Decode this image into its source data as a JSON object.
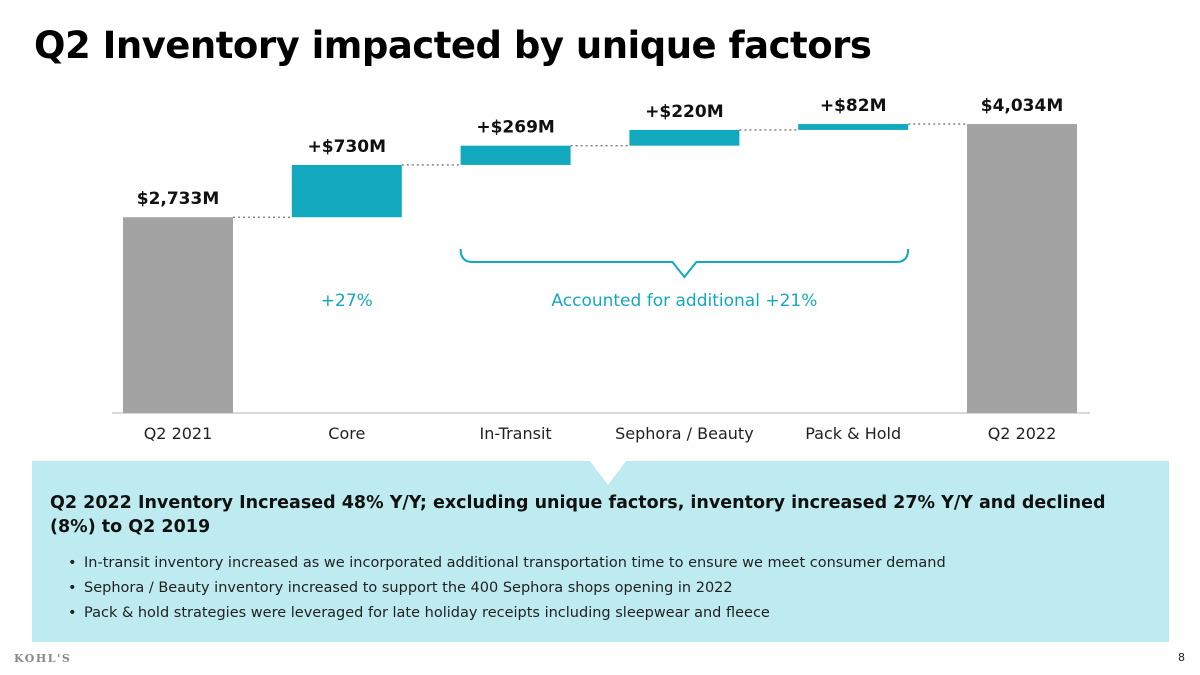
{
  "title": "Q2 Inventory impacted by unique factors",
  "colors": {
    "base": "#a3a3a3",
    "increase": "#12a9bf",
    "note": "#12a9bf",
    "axis": "#cccccc"
  },
  "chart_data": {
    "type": "waterfall",
    "unit": "$M",
    "categories": [
      "Q2 2021",
      "Core",
      "In-Transit",
      "Sephora / Beauty",
      "Pack & Hold",
      "Q2 2022"
    ],
    "series": [
      {
        "category": "Q2 2021",
        "kind": "total",
        "value": 2733,
        "label": "$2,733M"
      },
      {
        "category": "Core",
        "kind": "increase",
        "value": 730,
        "label": "+$730M"
      },
      {
        "category": "In-Transit",
        "kind": "increase",
        "value": 269,
        "label": "+$269M"
      },
      {
        "category": "Sephora / Beauty",
        "kind": "increase",
        "value": 220,
        "label": "+$220M"
      },
      {
        "category": "Pack & Hold",
        "kind": "increase",
        "value": 82,
        "label": "+$82M"
      },
      {
        "category": "Q2 2022",
        "kind": "total",
        "value": 4034,
        "label": "$4,034M"
      }
    ],
    "annotations": [
      {
        "id": "core",
        "text": "+27%",
        "category": "Core"
      },
      {
        "id": "unique",
        "text": "Accounted for additional +21%",
        "span": [
          "In-Transit",
          "Pack & Hold"
        ]
      }
    ],
    "ylim": [
      0,
      4034
    ]
  },
  "callout": {
    "headline": "Q2 2022 Inventory Increased 48% Y/Y; excluding unique factors, inventory increased 27% Y/Y and declined (8%) to Q2 2019",
    "bullets": [
      "In-transit inventory increased as we incorporated additional transportation time to ensure we meet consumer demand",
      "Sephora / Beauty inventory increased to support the 400 Sephora shops opening in 2022",
      "Pack & hold strategies were leveraged for late holiday receipts including sleepwear and fleece"
    ]
  },
  "footer": {
    "logo": "KOHL'S",
    "page_number": "8"
  }
}
